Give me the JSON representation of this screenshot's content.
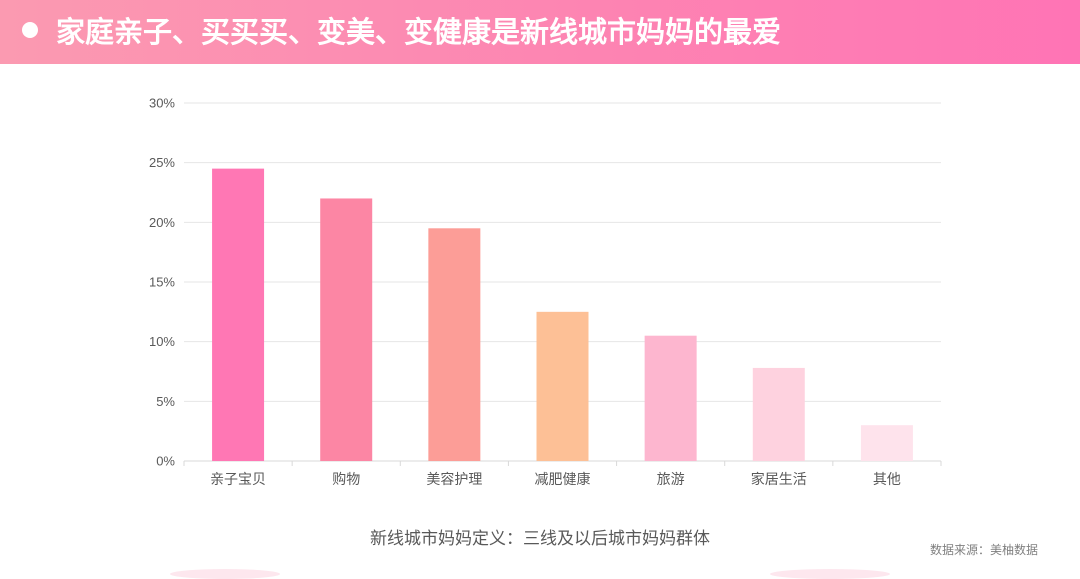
{
  "header": {
    "title": "家庭亲子、买买买、变美、变健康是新线城市妈妈的最爱"
  },
  "footnote": "新线城市妈妈定义：三线及以后城市妈妈群体",
  "source": "数据来源：美柚数据",
  "chart_data": {
    "type": "bar",
    "title": "",
    "xlabel": "",
    "ylabel": "",
    "categories": [
      "亲子宝贝",
      "购物",
      "美容护理",
      "减肥健康",
      "旅游",
      "家居生活",
      "其他"
    ],
    "values": [
      24.5,
      22.0,
      19.5,
      12.5,
      10.5,
      7.8,
      3.0
    ],
    "bar_colors": [
      "#ff77b4",
      "#fc86a4",
      "#fc9d97",
      "#fdc096",
      "#fdb6cf",
      "#fed2df",
      "#fee3ec"
    ],
    "ylim": [
      0,
      30
    ],
    "yticks": [
      "0%",
      "5%",
      "10%",
      "15%",
      "20%",
      "25%",
      "30%"
    ],
    "unit": "%",
    "grid": true,
    "legend": "none"
  },
  "colors": {
    "header_start": "#fb9ab1",
    "header_end": "#ff74b5",
    "grid": "#e6e6e6",
    "axis_text": "#595959"
  }
}
